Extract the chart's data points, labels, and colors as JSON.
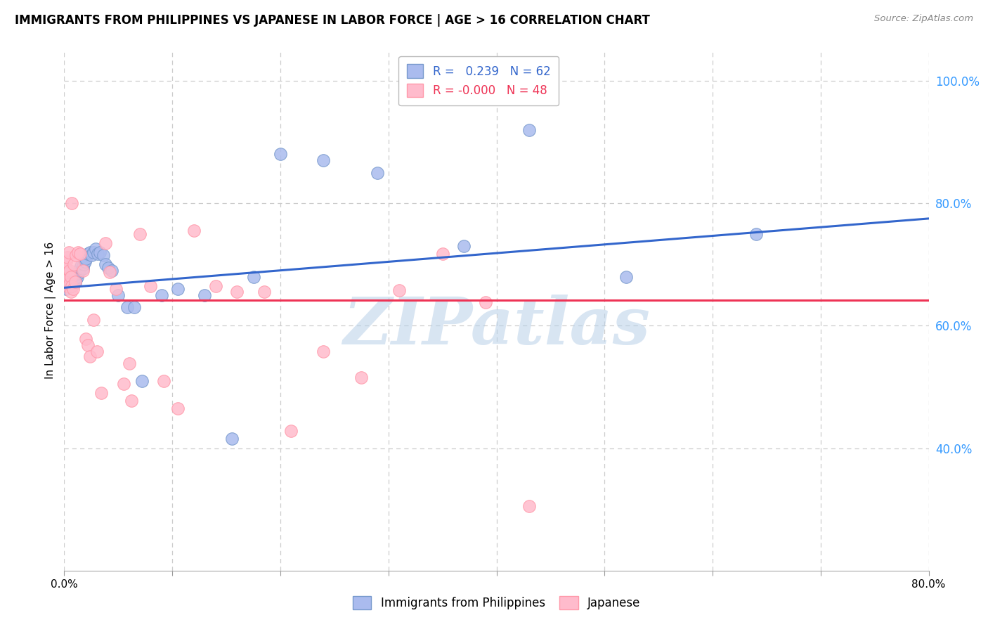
{
  "title": "IMMIGRANTS FROM PHILIPPINES VS JAPANESE IN LABOR FORCE | AGE > 16 CORRELATION CHART",
  "source": "Source: ZipAtlas.com",
  "ylabel": "In Labor Force | Age > 16",
  "legend_label1": "Immigrants from Philippines",
  "legend_label2": "Japanese",
  "R1": 0.239,
  "N1": 62,
  "R2": -0.0,
  "N2": 48,
  "xlim": [
    0.0,
    0.8
  ],
  "ylim": [
    0.2,
    1.05
  ],
  "ytick_right_vals": [
    1.0,
    0.8,
    0.6,
    0.4
  ],
  "grid_color": "#cccccc",
  "blue_scatter_face": "#aabbee",
  "blue_scatter_edge": "#7799cc",
  "pink_scatter_face": "#ffbbcc",
  "pink_scatter_edge": "#ff99aa",
  "trend_blue": "#3366cc",
  "trend_pink": "#ee3355",
  "watermark": "ZIPatlas",
  "watermark_color": "#b8d0e8",
  "blue_points_x": [
    0.001,
    0.001,
    0.002,
    0.002,
    0.002,
    0.003,
    0.003,
    0.003,
    0.004,
    0.004,
    0.004,
    0.005,
    0.005,
    0.005,
    0.006,
    0.006,
    0.006,
    0.007,
    0.007,
    0.008,
    0.008,
    0.009,
    0.009,
    0.01,
    0.01,
    0.011,
    0.012,
    0.013,
    0.014,
    0.015,
    0.016,
    0.017,
    0.018,
    0.019,
    0.02,
    0.022,
    0.024,
    0.025,
    0.027,
    0.029,
    0.031,
    0.033,
    0.036,
    0.038,
    0.041,
    0.044,
    0.05,
    0.058,
    0.065,
    0.072,
    0.09,
    0.105,
    0.13,
    0.155,
    0.175,
    0.2,
    0.24,
    0.29,
    0.37,
    0.43,
    0.52,
    0.64
  ],
  "blue_points_y": [
    0.675,
    0.68,
    0.66,
    0.67,
    0.685,
    0.665,
    0.672,
    0.68,
    0.67,
    0.675,
    0.688,
    0.663,
    0.672,
    0.68,
    0.668,
    0.675,
    0.683,
    0.67,
    0.678,
    0.672,
    0.682,
    0.668,
    0.676,
    0.67,
    0.68,
    0.675,
    0.68,
    0.685,
    0.69,
    0.695,
    0.7,
    0.693,
    0.7,
    0.705,
    0.71,
    0.718,
    0.72,
    0.715,
    0.72,
    0.725,
    0.718,
    0.72,
    0.715,
    0.7,
    0.695,
    0.69,
    0.65,
    0.63,
    0.63,
    0.51,
    0.65,
    0.66,
    0.65,
    0.415,
    0.68,
    0.88,
    0.87,
    0.85,
    0.73,
    0.92,
    0.68,
    0.75
  ],
  "pink_points_x": [
    0.001,
    0.001,
    0.002,
    0.002,
    0.003,
    0.003,
    0.004,
    0.004,
    0.005,
    0.005,
    0.006,
    0.006,
    0.007,
    0.007,
    0.008,
    0.009,
    0.01,
    0.011,
    0.013,
    0.015,
    0.017,
    0.02,
    0.022,
    0.024,
    0.027,
    0.03,
    0.034,
    0.038,
    0.042,
    0.048,
    0.055,
    0.062,
    0.07,
    0.08,
    0.092,
    0.105,
    0.12,
    0.14,
    0.16,
    0.185,
    0.21,
    0.24,
    0.275,
    0.31,
    0.35,
    0.39,
    0.43,
    0.06
  ],
  "pink_points_y": [
    0.688,
    0.695,
    0.672,
    0.705,
    0.665,
    0.712,
    0.678,
    0.72,
    0.668,
    0.69,
    0.655,
    0.68,
    0.665,
    0.8,
    0.66,
    0.7,
    0.672,
    0.715,
    0.72,
    0.718,
    0.69,
    0.578,
    0.568,
    0.55,
    0.61,
    0.558,
    0.49,
    0.735,
    0.688,
    0.66,
    0.505,
    0.478,
    0.75,
    0.665,
    0.51,
    0.465,
    0.755,
    0.665,
    0.655,
    0.655,
    0.428,
    0.558,
    0.515,
    0.658,
    0.718,
    0.638,
    0.305,
    0.538
  ],
  "trend_blue_x0": 0.0,
  "trend_blue_x1": 0.8,
  "trend_blue_y0": 0.662,
  "trend_blue_y1": 0.775,
  "trend_pink_y": 0.642
}
